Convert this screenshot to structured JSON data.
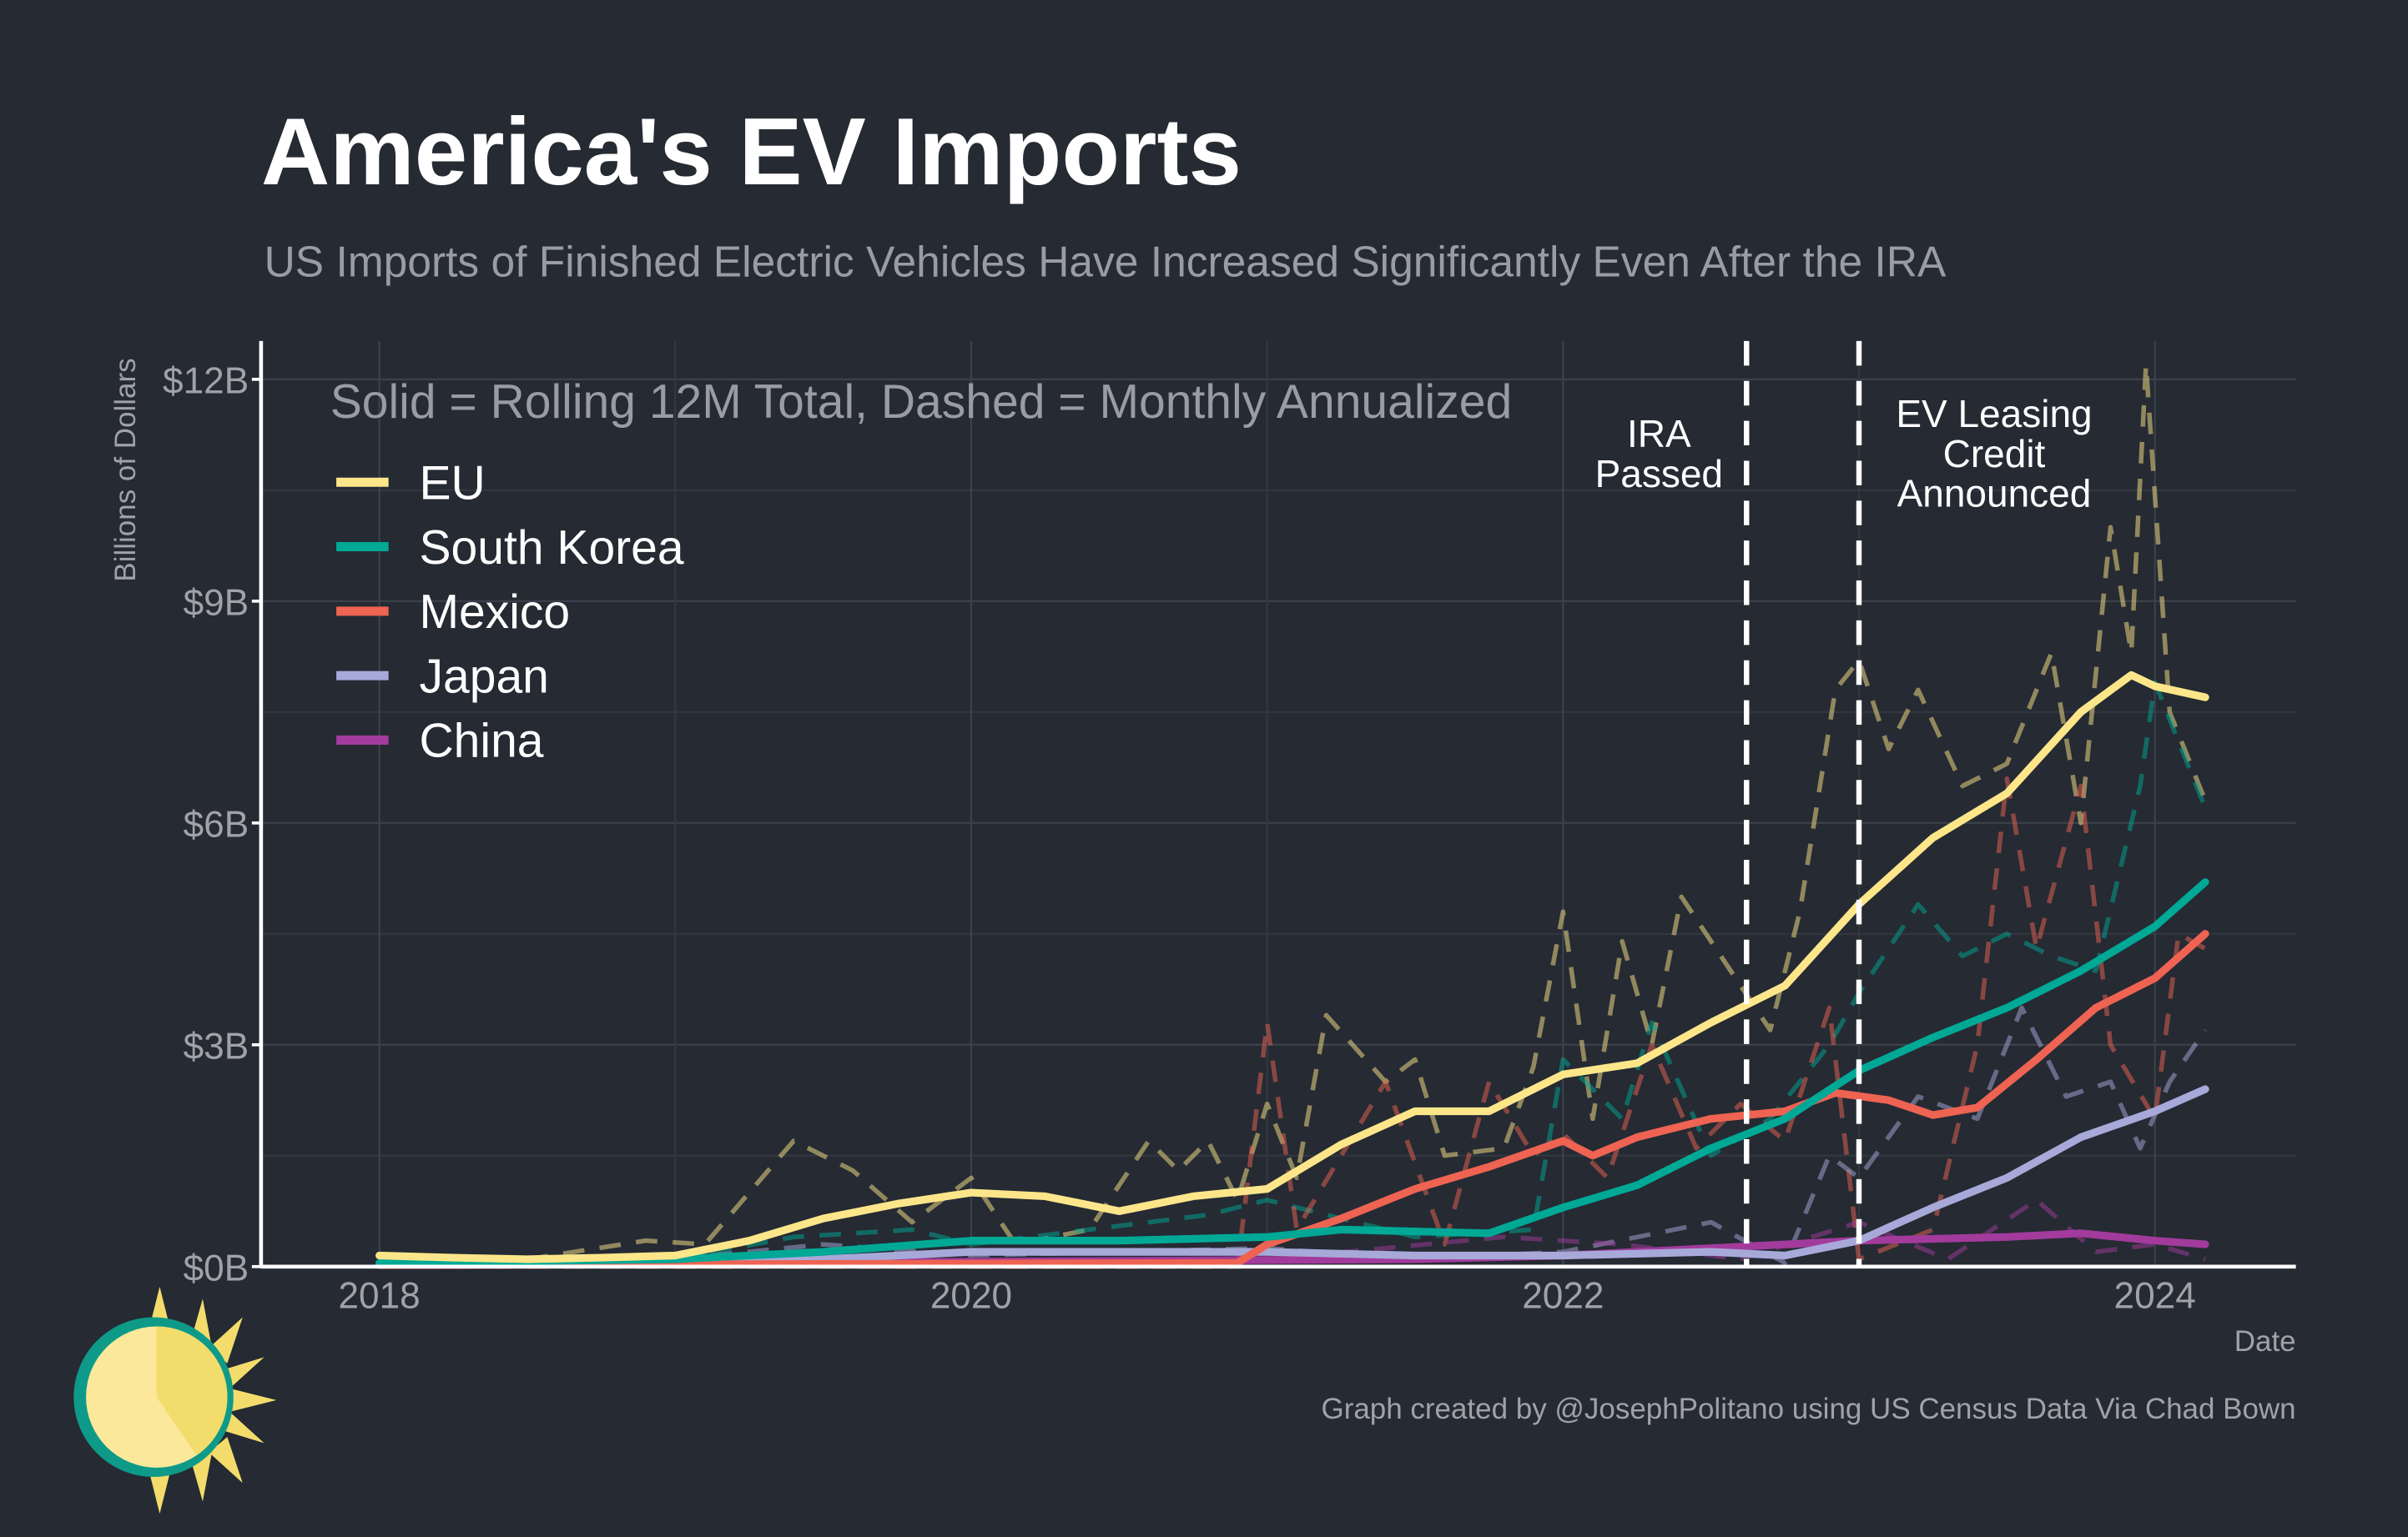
{
  "chart_data": {
    "type": "line",
    "title": "America's EV Imports",
    "subtitle": "US Imports of Finished Electric Vehicles Have Increased Significantly Even After the IRA",
    "xlabel": "Date",
    "ylabel": "Billions of Dollars",
    "xlim": [
      2017.6,
      2024.6
    ],
    "ylim": [
      0,
      12.4
    ],
    "x_ticks": [
      {
        "value": 2018,
        "label": "2018"
      },
      {
        "value": 2020,
        "label": "2020"
      },
      {
        "value": 2022,
        "label": "2022"
      },
      {
        "value": 2024,
        "label": "2024"
      }
    ],
    "y_ticks": [
      {
        "value": 0,
        "label": "$0B"
      },
      {
        "value": 3,
        "label": "$3B"
      },
      {
        "value": 6,
        "label": "$6B"
      },
      {
        "value": 9,
        "label": "$9B"
      },
      {
        "value": 12,
        "label": "$12B"
      }
    ],
    "grid": true,
    "legend_title": "Solid = Rolling 12M Total, Dashed = Monthly Annualized",
    "legend_placement": "top-left",
    "annotations": [
      {
        "x": 2022.62,
        "lines": [
          "IRA",
          "Passed"
        ]
      },
      {
        "x": 2023.0,
        "lines": [
          "EV Leasing",
          "Credit",
          "Announced"
        ]
      }
    ],
    "series": [
      {
        "name": "EU",
        "color": "#fde68a",
        "solid": [
          [
            2018,
            0.15
          ],
          [
            2018.25,
            0.12
          ],
          [
            2018.5,
            0.1
          ],
          [
            2018.75,
            0.12
          ],
          [
            2019,
            0.15
          ],
          [
            2019.25,
            0.35
          ],
          [
            2019.5,
            0.65
          ],
          [
            2019.75,
            0.85
          ],
          [
            2020,
            1.0
          ],
          [
            2020.25,
            0.95
          ],
          [
            2020.5,
            0.75
          ],
          [
            2020.75,
            0.95
          ],
          [
            2021,
            1.05
          ],
          [
            2021.25,
            1.65
          ],
          [
            2021.5,
            2.1
          ],
          [
            2021.75,
            2.1
          ],
          [
            2022,
            2.6
          ],
          [
            2022.25,
            2.75
          ],
          [
            2022.5,
            3.3
          ],
          [
            2022.75,
            3.8
          ],
          [
            2023,
            4.9
          ],
          [
            2023.25,
            5.8
          ],
          [
            2023.5,
            6.4
          ],
          [
            2023.75,
            7.5
          ],
          [
            2023.92,
            8.0
          ],
          [
            2024,
            7.85
          ],
          [
            2024.17,
            7.7
          ]
        ],
        "dashed": [
          [
            2018,
            0.05
          ],
          [
            2018.5,
            0.1
          ],
          [
            2018.9,
            0.35
          ],
          [
            2019.1,
            0.3
          ],
          [
            2019.4,
            1.7
          ],
          [
            2019.6,
            1.3
          ],
          [
            2019.8,
            0.6
          ],
          [
            2020,
            1.2
          ],
          [
            2020.15,
            0.3
          ],
          [
            2020.4,
            0.5
          ],
          [
            2020.6,
            1.7
          ],
          [
            2020.7,
            1.3
          ],
          [
            2020.8,
            1.7
          ],
          [
            2020.9,
            0.9
          ],
          [
            2021,
            2.2
          ],
          [
            2021.1,
            1.2
          ],
          [
            2021.2,
            3.4
          ],
          [
            2021.4,
            2.5
          ],
          [
            2021.5,
            2.8
          ],
          [
            2021.6,
            1.5
          ],
          [
            2021.8,
            1.6
          ],
          [
            2021.9,
            2.7
          ],
          [
            2022,
            4.8
          ],
          [
            2022.1,
            2.0
          ],
          [
            2022.2,
            4.4
          ],
          [
            2022.3,
            3.0
          ],
          [
            2022.4,
            5.0
          ],
          [
            2022.6,
            3.8
          ],
          [
            2022.7,
            3.2
          ],
          [
            2022.8,
            4.8
          ],
          [
            2022.92,
            7.8
          ],
          [
            2023,
            8.2
          ],
          [
            2023.1,
            7.0
          ],
          [
            2023.2,
            7.8
          ],
          [
            2023.35,
            6.5
          ],
          [
            2023.5,
            6.8
          ],
          [
            2023.65,
            8.3
          ],
          [
            2023.75,
            6.0
          ],
          [
            2023.85,
            10.0
          ],
          [
            2023.92,
            8.3
          ],
          [
            2023.97,
            12.2
          ],
          [
            2024.05,
            7.5
          ],
          [
            2024.17,
            6.3
          ]
        ]
      },
      {
        "name": "South Korea",
        "color": "#00a896",
        "solid": [
          [
            2018,
            0.05
          ],
          [
            2019,
            0.1
          ],
          [
            2019.5,
            0.2
          ],
          [
            2020,
            0.35
          ],
          [
            2020.5,
            0.35
          ],
          [
            2021,
            0.4
          ],
          [
            2021.25,
            0.5
          ],
          [
            2021.75,
            0.45
          ],
          [
            2022,
            0.8
          ],
          [
            2022.25,
            1.1
          ],
          [
            2022.5,
            1.6
          ],
          [
            2022.75,
            2.0
          ],
          [
            2023,
            2.65
          ],
          [
            2023.25,
            3.1
          ],
          [
            2023.5,
            3.5
          ],
          [
            2023.75,
            4.0
          ],
          [
            2024,
            4.6
          ],
          [
            2024.17,
            5.2
          ]
        ],
        "dashed": [
          [
            2018,
            0.05
          ],
          [
            2019,
            0.1
          ],
          [
            2019.4,
            0.4
          ],
          [
            2019.8,
            0.5
          ],
          [
            2020,
            0.3
          ],
          [
            2020.4,
            0.5
          ],
          [
            2020.8,
            0.7
          ],
          [
            2021,
            0.9
          ],
          [
            2021.5,
            0.4
          ],
          [
            2021.9,
            0.5
          ],
          [
            2022,
            2.8
          ],
          [
            2022.2,
            2.0
          ],
          [
            2022.3,
            3.3
          ],
          [
            2022.5,
            1.5
          ],
          [
            2022.7,
            2.0
          ],
          [
            2022.9,
            3.0
          ],
          [
            2023,
            3.7
          ],
          [
            2023.2,
            4.9
          ],
          [
            2023.35,
            4.2
          ],
          [
            2023.5,
            4.5
          ],
          [
            2023.65,
            4.2
          ],
          [
            2023.8,
            4.0
          ],
          [
            2023.95,
            6.5
          ],
          [
            2024,
            7.9
          ],
          [
            2024.17,
            6.2
          ]
        ]
      },
      {
        "name": "Mexico",
        "color": "#ee6352",
        "solid": [
          [
            2018,
            0.02
          ],
          [
            2020.9,
            0.05
          ],
          [
            2021,
            0.3
          ],
          [
            2021.25,
            0.65
          ],
          [
            2021.5,
            1.05
          ],
          [
            2021.75,
            1.35
          ],
          [
            2022,
            1.7
          ],
          [
            2022.1,
            1.5
          ],
          [
            2022.25,
            1.75
          ],
          [
            2022.5,
            2.0
          ],
          [
            2022.75,
            2.1
          ],
          [
            2022.92,
            2.35
          ],
          [
            2023.1,
            2.25
          ],
          [
            2023.25,
            2.05
          ],
          [
            2023.4,
            2.15
          ],
          [
            2023.6,
            2.8
          ],
          [
            2023.8,
            3.5
          ],
          [
            2024,
            3.9
          ],
          [
            2024.17,
            4.5
          ]
        ],
        "dashed": [
          [
            2018,
            0.0
          ],
          [
            2020.9,
            0.0
          ],
          [
            2021,
            3.3
          ],
          [
            2021.1,
            0.5
          ],
          [
            2021.4,
            2.5
          ],
          [
            2021.6,
            0.3
          ],
          [
            2021.75,
            2.5
          ],
          [
            2021.9,
            1.5
          ],
          [
            2022,
            1.8
          ],
          [
            2022.15,
            1.2
          ],
          [
            2022.3,
            3.0
          ],
          [
            2022.45,
            1.6
          ],
          [
            2022.6,
            2.2
          ],
          [
            2022.75,
            1.7
          ],
          [
            2022.9,
            3.5
          ],
          [
            2023,
            0.1
          ],
          [
            2023.25,
            0.5
          ],
          [
            2023.4,
            3.0
          ],
          [
            2023.5,
            6.6
          ],
          [
            2023.6,
            4.3
          ],
          [
            2023.75,
            6.5
          ],
          [
            2023.85,
            3.0
          ],
          [
            2024,
            2.0
          ],
          [
            2024.08,
            4.5
          ],
          [
            2024.17,
            4.3
          ]
        ]
      },
      {
        "name": "Japan",
        "color": "#a7a9d9",
        "solid": [
          [
            2018,
            0.02
          ],
          [
            2019.5,
            0.1
          ],
          [
            2020,
            0.2
          ],
          [
            2020.5,
            0.2
          ],
          [
            2021,
            0.2
          ],
          [
            2021.5,
            0.15
          ],
          [
            2022,
            0.15
          ],
          [
            2022.5,
            0.2
          ],
          [
            2022.75,
            0.15
          ],
          [
            2023,
            0.35
          ],
          [
            2023.25,
            0.8
          ],
          [
            2023.5,
            1.2
          ],
          [
            2023.75,
            1.75
          ],
          [
            2024,
            2.1
          ],
          [
            2024.17,
            2.4
          ]
        ],
        "dashed": [
          [
            2018,
            0.05
          ],
          [
            2019,
            0.1
          ],
          [
            2019.5,
            0.3
          ],
          [
            2020,
            0.15
          ],
          [
            2021,
            0.25
          ],
          [
            2021.5,
            0.1
          ],
          [
            2022,
            0.2
          ],
          [
            2022.5,
            0.6
          ],
          [
            2022.75,
            0.05
          ],
          [
            2022.9,
            1.5
          ],
          [
            2023,
            1.2
          ],
          [
            2023.2,
            2.3
          ],
          [
            2023.4,
            2.0
          ],
          [
            2023.55,
            3.5
          ],
          [
            2023.7,
            2.3
          ],
          [
            2023.85,
            2.5
          ],
          [
            2023.95,
            1.6
          ],
          [
            2024.05,
            2.5
          ],
          [
            2024.17,
            3.2
          ]
        ]
      },
      {
        "name": "China",
        "color": "#a23b9c",
        "solid": [
          [
            2018,
            0.02
          ],
          [
            2021.5,
            0.1
          ],
          [
            2022,
            0.15
          ],
          [
            2022.5,
            0.25
          ],
          [
            2023,
            0.35
          ],
          [
            2023.5,
            0.4
          ],
          [
            2023.75,
            0.45
          ],
          [
            2024,
            0.35
          ],
          [
            2024.17,
            0.3
          ]
        ],
        "dashed": [
          [
            2018,
            0.0
          ],
          [
            2020,
            0.05
          ],
          [
            2021,
            0.1
          ],
          [
            2021.8,
            0.4
          ],
          [
            2022.2,
            0.3
          ],
          [
            2022.6,
            0.1
          ],
          [
            2023,
            0.6
          ],
          [
            2023.3,
            0.1
          ],
          [
            2023.6,
            0.9
          ],
          [
            2023.8,
            0.2
          ],
          [
            2024,
            0.3
          ],
          [
            2024.17,
            0.1
          ]
        ]
      }
    ]
  },
  "footer": {
    "credit": "Graph created by @JosephPolitano using US Census Data Via Chad Bown"
  }
}
